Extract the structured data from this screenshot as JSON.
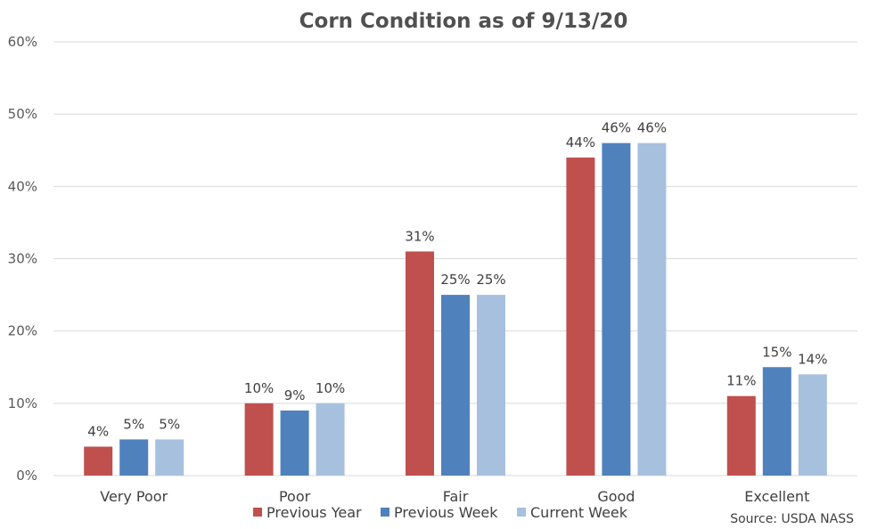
{
  "chart_data": {
    "type": "bar",
    "title": "Corn Condition as of 9/13/20",
    "categories": [
      "Very Poor",
      "Poor",
      "Fair",
      "Good",
      "Excellent"
    ],
    "series": [
      {
        "name": "Previous Year",
        "color": "#c0504d",
        "values": [
          4,
          10,
          31,
          44,
          11
        ],
        "labels": [
          "4%",
          "10%",
          "31%",
          "44%",
          "11%"
        ]
      },
      {
        "name": "Previous Week",
        "color": "#4f81bd",
        "values": [
          5,
          9,
          25,
          46,
          15
        ],
        "labels": [
          "5%",
          "9%",
          "25%",
          "46%",
          "15%"
        ]
      },
      {
        "name": "Current Week",
        "color": "#a7c0de",
        "values": [
          5,
          10,
          25,
          46,
          14
        ],
        "labels": [
          "5%",
          "10%",
          "25%",
          "46%",
          "14%"
        ]
      }
    ],
    "ylim": [
      0,
      60
    ],
    "yticks": [
      0,
      10,
      20,
      30,
      40,
      50,
      60
    ],
    "ytick_labels": [
      "0%",
      "10%",
      "20%",
      "30%",
      "40%",
      "50%",
      "60%"
    ],
    "grid": true,
    "legend_position": "bottom",
    "source": "Source: USDA NASS"
  }
}
